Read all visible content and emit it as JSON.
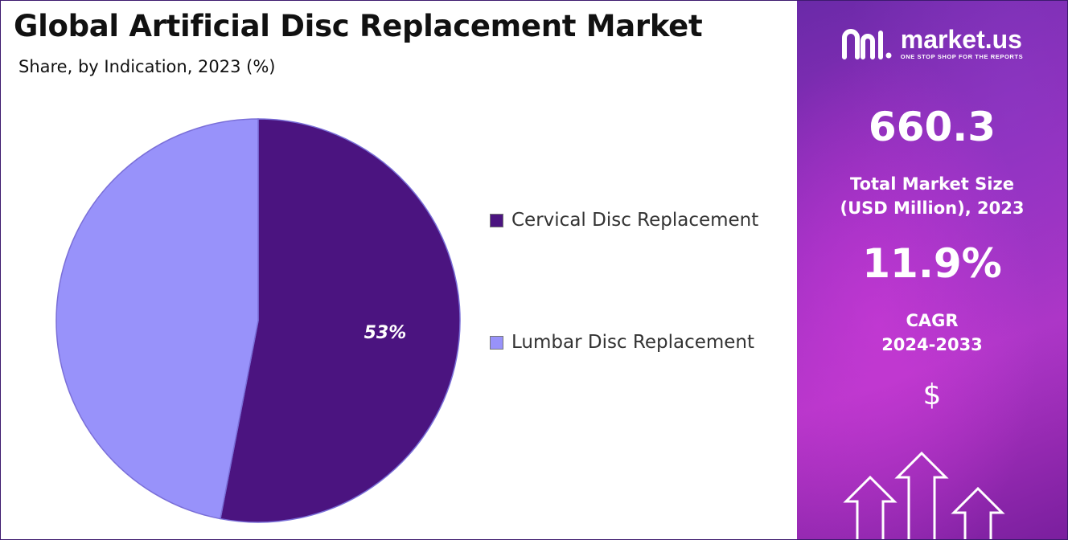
{
  "title": "Global Artificial Disc Replacement Market",
  "subtitle": "Share, by Indication, 2023 (%)",
  "chart_data": {
    "type": "pie",
    "categories": [
      "Cervical Disc Replacement",
      "Lumbar Disc Replacement"
    ],
    "values": [
      53,
      47
    ],
    "data_labels": [
      "53%",
      ""
    ],
    "colors": [
      "#4b1480",
      "#9892fa"
    ],
    "legend_position": "right"
  },
  "sidebar": {
    "logo_name": "market.us",
    "logo_tagline": "ONE STOP SHOP FOR THE REPORTS",
    "market_size_value": "660.3",
    "market_size_label_line1": "Total Market Size",
    "market_size_label_line2": "(USD Million), 2023",
    "cagr_value": "11.9%",
    "cagr_label_line1": "CAGR",
    "cagr_label_line2": "2024-2033",
    "currency_icon": "dollar-icon",
    "decor_icon": "up-arrows-icon"
  }
}
